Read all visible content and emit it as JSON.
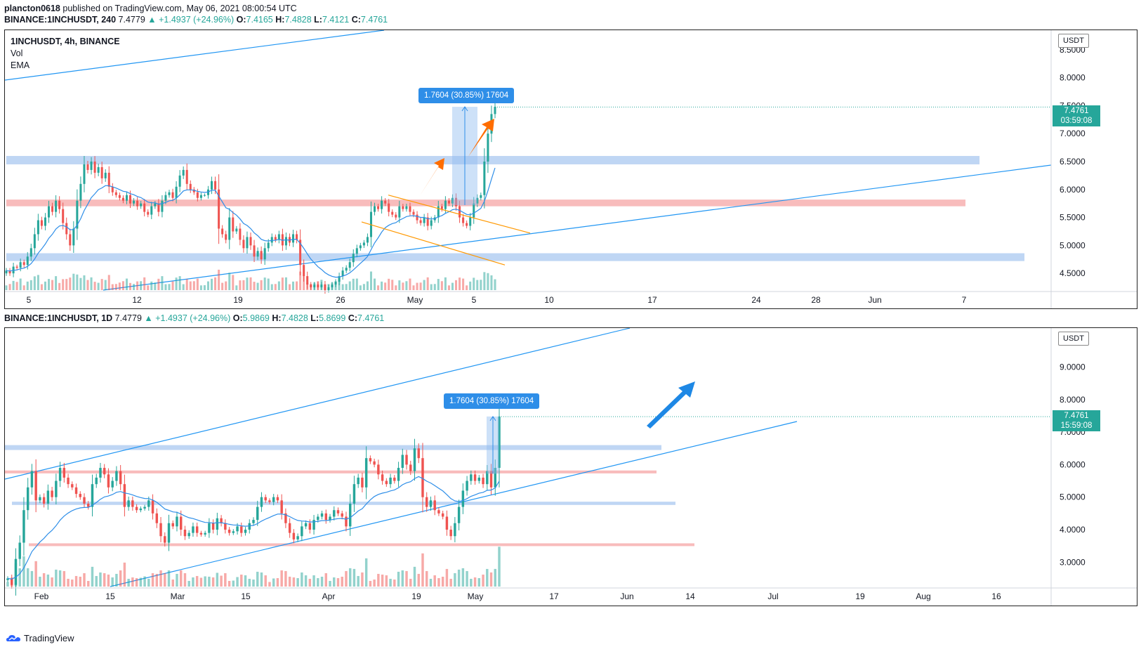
{
  "header": {
    "publisher": "plancton0618",
    "published_text": "published on TradingView.com, May 06, 2021 08:00:54 UTC"
  },
  "top": {
    "quote_line": {
      "symbol": "BINANCE:1INCHUSDT, 240",
      "last": "7.4779",
      "change": "▲ +1.4937 (+24.96%)",
      "o_label": "O:",
      "o": "7.4165",
      "h_label": "H:",
      "h": "7.4828",
      "l_label": "L:",
      "l": "7.4121",
      "c_label": "C:",
      "c": "7.4761"
    },
    "legend": {
      "title": "1INCHUSDT, 4h, BINANCE",
      "vol": "Vol",
      "ema": "EMA"
    },
    "unit": "USDT",
    "price_label": "7.4761",
    "countdown": "03:59:08",
    "measure_label": "1.7604 (30.85%) 17604"
  },
  "bottom": {
    "quote_line": {
      "symbol": "BINANCE:1INCHUSDT, 1D",
      "last": "7.4779",
      "change": "▲ +1.4937 (+24.96%)",
      "o_label": "O:",
      "o": "5.9869",
      "h_label": "H:",
      "h": "7.4828",
      "l_label": "L:",
      "l": "5.8699",
      "c_label": "C:",
      "c": "7.4761"
    },
    "unit": "USDT",
    "price_label": "7.4761",
    "countdown": "15:59:08",
    "measure_label": "1.7604 (30.85%) 17604"
  },
  "brand": "TradingView",
  "colors": {
    "up": "#26a69a",
    "down": "#ef5350",
    "blue_zone": "#a9c8f0",
    "red_zone": "#f6a5a5",
    "trend": "#2196f3",
    "ema": "#2e8ee8",
    "wedge": "#ff9800",
    "arrow_top": "#ff6d00",
    "arrow_bottom": "#1e88e5"
  },
  "chart_data": [
    {
      "type": "candlestick",
      "title": "1INCHUSDT, 4h, BINANCE",
      "ylim": [
        4.2,
        8.85
      ],
      "y_ticks": [
        "8.5000",
        "8.0000",
        "7.5000",
        "7.0000",
        "6.5000",
        "6.0000",
        "5.5000",
        "5.0000",
        "4.5000"
      ],
      "x_ticks": [
        "5",
        "12",
        "19",
        "26",
        "May",
        "5",
        "10",
        "17",
        "24",
        "28",
        "Jun",
        "7"
      ],
      "zones": [
        {
          "color": "blue",
          "from": 6.45,
          "to": 6.6
        },
        {
          "color": "red",
          "from": 5.7,
          "to": 5.82
        },
        {
          "color": "blue",
          "from": 4.72,
          "to": 4.86
        }
      ],
      "last_price": 7.4761,
      "measure": {
        "from": 5.72,
        "to": 7.48,
        "label": "1.7604 (30.85%) 17604"
      },
      "closes": [
        4.55,
        4.5,
        4.62,
        4.6,
        4.7,
        4.65,
        4.8,
        4.95,
        5.2,
        5.45,
        5.35,
        5.5,
        5.7,
        5.6,
        5.8,
        5.65,
        5.4,
        5.2,
        5.0,
        5.3,
        5.8,
        6.1,
        6.45,
        6.35,
        6.5,
        6.3,
        6.4,
        6.2,
        6.3,
        6.05,
        5.95,
        5.9,
        5.85,
        5.8,
        5.9,
        5.75,
        5.8,
        5.7,
        5.75,
        5.6,
        5.55,
        5.7,
        5.75,
        5.6,
        5.8,
        5.9,
        5.95,
        5.85,
        6.05,
        6.25,
        6.35,
        6.1,
        6.0,
        5.95,
        5.85,
        5.9,
        5.9,
        6.0,
        6.15,
        6.0,
        5.3,
        5.2,
        5.1,
        5.5,
        5.25,
        5.3,
        5.1,
        4.95,
        5.15,
        5.0,
        4.8,
        4.9,
        4.75,
        4.95,
        5.05,
        5.15,
        5.1,
        5.2,
        5.0,
        5.15,
        5.05,
        5.2,
        5.1,
        4.65,
        4.45,
        4.3,
        4.25,
        4.3,
        4.25,
        4.3,
        4.2,
        4.25,
        4.3,
        4.35,
        4.45,
        4.55,
        4.6,
        4.7,
        4.85,
        4.95,
        5.0,
        5.05,
        5.15,
        5.6,
        5.7,
        5.65,
        5.8,
        5.75,
        5.6,
        5.55,
        5.5,
        5.7,
        5.65,
        5.7,
        5.6,
        5.55,
        5.45,
        5.4,
        5.5,
        5.35,
        5.45,
        5.5,
        5.7,
        5.65,
        5.8,
        5.75,
        5.85,
        5.7,
        5.5,
        5.4,
        5.35,
        5.5,
        5.75,
        5.85,
        5.9,
        6.5,
        7.0,
        7.35,
        7.48
      ]
    },
    {
      "type": "candlestick",
      "title": "BINANCE:1INCHUSDT, 1D",
      "ylim": [
        2.25,
        10.2
      ],
      "y_ticks": [
        "9.0000",
        "8.0000",
        "7.0000",
        "6.0000",
        "5.0000",
        "4.0000",
        "3.0000"
      ],
      "x_ticks": [
        "Feb",
        "15",
        "Mar",
        "15",
        "Apr",
        "19",
        "May",
        "17",
        "Jun",
        "14",
        "Jul",
        "19",
        "Aug",
        "16"
      ],
      "zones": [
        {
          "color": "blue",
          "from": 6.45,
          "to": 6.6
        },
        {
          "color": "red",
          "from": 5.73,
          "to": 5.82
        },
        {
          "color": "blue",
          "from": 4.76,
          "to": 4.86
        },
        {
          "color": "red",
          "from": 3.5,
          "to": 3.58
        }
      ],
      "last_price": 7.4761,
      "measure": {
        "from": 5.72,
        "to": 7.48,
        "label": "1.7604 (30.85%) 17604"
      },
      "closes": [
        2.5,
        2.3,
        3.1,
        3.6,
        4.6,
        5.3,
        5.8,
        4.9,
        5.0,
        4.8,
        5.2,
        5.0,
        5.5,
        5.9,
        5.6,
        5.4,
        5.3,
        5.1,
        5.0,
        4.8,
        4.7,
        5.4,
        5.6,
        5.9,
        5.7,
        5.3,
        5.5,
        5.8,
        5.4,
        4.7,
        4.9,
        4.7,
        4.6,
        4.65,
        4.7,
        4.9,
        4.5,
        4.2,
        3.8,
        3.6,
        4.2,
        4.1,
        4.4,
        4.0,
        3.8,
        3.9,
        4.1,
        3.9,
        3.85,
        3.9,
        4.2,
        4.0,
        4.35,
        4.2,
        4.0,
        3.9,
        3.95,
        4.1,
        3.9,
        4.0,
        4.2,
        4.3,
        4.7,
        5.0,
        4.9,
        4.85,
        5.0,
        4.9,
        4.5,
        4.2,
        3.9,
        3.7,
        3.8,
        4.1,
        4.2,
        4.0,
        4.3,
        4.4,
        4.5,
        4.3,
        4.4,
        4.6,
        4.5,
        4.4,
        4.1,
        4.8,
        5.4,
        5.6,
        5.3,
        6.2,
        6.1,
        6.0,
        5.7,
        5.5,
        5.4,
        5.6,
        5.5,
        5.9,
        6.3,
        6.0,
        5.8,
        6.5,
        6.2,
        5.0,
        4.7,
        4.9,
        4.6,
        4.5,
        4.4,
        4.0,
        3.8,
        4.2,
        4.7,
        5.2,
        5.5,
        5.7,
        5.5,
        5.6,
        5.4,
        5.8,
        5.3,
        5.9,
        7.48
      ]
    }
  ]
}
